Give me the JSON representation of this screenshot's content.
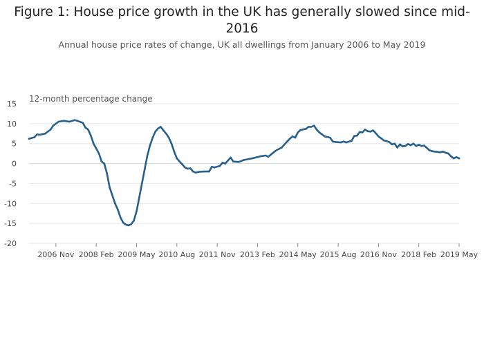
{
  "chart_data": {
    "type": "line",
    "title": "Figure 1: House price growth in the UK has generally slowed since mid-2016",
    "title_lines": [
      "Figure 1: House price growth in the UK has generally slowed since mid-",
      "2016"
    ],
    "subtitle": "Annual house price rates of change, UK all dwellings from January 2006 to May 2019",
    "ylabel": "12-month percentage change",
    "xlabel": "",
    "ylim": [
      -20,
      15
    ],
    "yticks": [
      15,
      10,
      5,
      0,
      -5,
      -10,
      -15,
      -20
    ],
    "xlim": [
      "2006-01",
      "2019-05"
    ],
    "xticks": [
      {
        "label": "2006 Nov",
        "date": "2006-11"
      },
      {
        "label": "2008 Feb",
        "date": "2008-02"
      },
      {
        "label": "2009 May",
        "date": "2009-05"
      },
      {
        "label": "2010 Aug",
        "date": "2010-08"
      },
      {
        "label": "2011 Nov",
        "date": "2011-11"
      },
      {
        "label": "2013 Feb",
        "date": "2013-02"
      },
      {
        "label": "2014 May",
        "date": "2014-05"
      },
      {
        "label": "2015 Aug",
        "date": "2015-08"
      },
      {
        "label": "2016 Nov",
        "date": "2016-11"
      },
      {
        "label": "2018 Feb",
        "date": "2018-02"
      },
      {
        "label": "2019 May",
        "date": "2019-05"
      }
    ],
    "grid": true,
    "line_color": "#27608f",
    "series": [
      {
        "points": [
          [
            "2006-01",
            6.2
          ],
          [
            "2006-03",
            6.6
          ],
          [
            "2006-04",
            7.3
          ],
          [
            "2006-05",
            7.2
          ],
          [
            "2006-07",
            7.5
          ],
          [
            "2006-09",
            8.5
          ],
          [
            "2006-10",
            9.5
          ],
          [
            "2006-12",
            10.5
          ],
          [
            "2007-02",
            10.7
          ],
          [
            "2007-04",
            10.5
          ],
          [
            "2007-06",
            10.9
          ],
          [
            "2007-07",
            10.7
          ],
          [
            "2007-09",
            10.2
          ],
          [
            "2007-10",
            9.0
          ],
          [
            "2007-11",
            8.5
          ],
          [
            "2007-12",
            7.0
          ],
          [
            "2008-01",
            5.0
          ],
          [
            "2008-03",
            2.5
          ],
          [
            "2008-04",
            0.5
          ],
          [
            "2008-05",
            0.0
          ],
          [
            "2008-06",
            -2.5
          ],
          [
            "2008-07",
            -6.0
          ],
          [
            "2008-09",
            -10.0
          ],
          [
            "2008-10",
            -11.5
          ],
          [
            "2008-11",
            -13.5
          ],
          [
            "2008-12",
            -14.8
          ],
          [
            "2009-01",
            -15.3
          ],
          [
            "2009-02",
            -15.5
          ],
          [
            "2009-03",
            -15.2
          ],
          [
            "2009-04",
            -14.3
          ],
          [
            "2009-05",
            -12.0
          ],
          [
            "2009-06",
            -8.5
          ],
          [
            "2009-07",
            -5.0
          ],
          [
            "2009-08",
            -1.5
          ],
          [
            "2009-09",
            2.0
          ],
          [
            "2009-10",
            4.5
          ],
          [
            "2009-11",
            6.5
          ],
          [
            "2009-12",
            8.0
          ],
          [
            "2010-01",
            8.8
          ],
          [
            "2010-02",
            9.2
          ],
          [
            "2010-03",
            8.3
          ],
          [
            "2010-04",
            7.5
          ],
          [
            "2010-05",
            6.5
          ],
          [
            "2010-06",
            5.0
          ],
          [
            "2010-07",
            3.0
          ],
          [
            "2010-08",
            1.3
          ],
          [
            "2010-09",
            0.5
          ],
          [
            "2010-10",
            -0.2
          ],
          [
            "2010-11",
            -1.0
          ],
          [
            "2010-12",
            -1.3
          ],
          [
            "2011-01",
            -1.2
          ],
          [
            "2011-02",
            -2.0
          ],
          [
            "2011-03",
            -2.3
          ],
          [
            "2011-04",
            -2.1
          ],
          [
            "2011-06",
            -2.0
          ],
          [
            "2011-08",
            -2.0
          ],
          [
            "2011-09",
            -0.8
          ],
          [
            "2011-10",
            -1.0
          ],
          [
            "2011-12",
            -0.6
          ],
          [
            "2012-01",
            0.2
          ],
          [
            "2012-02",
            0.0
          ],
          [
            "2012-04",
            1.5
          ],
          [
            "2012-05",
            0.5
          ],
          [
            "2012-07",
            0.4
          ],
          [
            "2012-09",
            0.9
          ],
          [
            "2012-12",
            1.3
          ],
          [
            "2013-03",
            1.8
          ],
          [
            "2013-05",
            2.0
          ],
          [
            "2013-06",
            1.7
          ],
          [
            "2013-08",
            2.8
          ],
          [
            "2013-09",
            3.3
          ],
          [
            "2013-11",
            4.0
          ],
          [
            "2014-01",
            5.5
          ],
          [
            "2014-02",
            6.2
          ],
          [
            "2014-03",
            6.8
          ],
          [
            "2014-04",
            6.5
          ],
          [
            "2014-05",
            7.8
          ],
          [
            "2014-06",
            8.4
          ],
          [
            "2014-08",
            8.7
          ],
          [
            "2014-09",
            9.2
          ],
          [
            "2014-10",
            9.2
          ],
          [
            "2014-11",
            9.5
          ],
          [
            "2014-12",
            8.5
          ],
          [
            "2015-01",
            7.8
          ],
          [
            "2015-03",
            6.8
          ],
          [
            "2015-05",
            6.5
          ],
          [
            "2015-06",
            5.5
          ],
          [
            "2015-07",
            5.4
          ],
          [
            "2015-09",
            5.3
          ],
          [
            "2015-10",
            5.5
          ],
          [
            "2015-11",
            5.3
          ],
          [
            "2016-01",
            5.7
          ],
          [
            "2016-02",
            6.9
          ],
          [
            "2016-03",
            7.0
          ],
          [
            "2016-04",
            7.9
          ],
          [
            "2016-05",
            7.8
          ],
          [
            "2016-06",
            8.5
          ],
          [
            "2016-07",
            8.1
          ],
          [
            "2016-08",
            8.0
          ],
          [
            "2016-09",
            8.3
          ],
          [
            "2016-10",
            7.6
          ],
          [
            "2016-11",
            6.8
          ],
          [
            "2016-12",
            6.3
          ],
          [
            "2017-01",
            5.8
          ],
          [
            "2017-02",
            5.6
          ],
          [
            "2017-03",
            5.4
          ],
          [
            "2017-04",
            4.8
          ],
          [
            "2017-05",
            5.0
          ],
          [
            "2017-06",
            4.0
          ],
          [
            "2017-07",
            4.8
          ],
          [
            "2017-08",
            4.3
          ],
          [
            "2017-09",
            4.4
          ],
          [
            "2017-10",
            4.9
          ],
          [
            "2017-11",
            4.6
          ],
          [
            "2017-12",
            5.0
          ],
          [
            "2018-01",
            4.4
          ],
          [
            "2018-02",
            4.7
          ],
          [
            "2018-03",
            4.4
          ],
          [
            "2018-04",
            4.5
          ],
          [
            "2018-05",
            3.9
          ],
          [
            "2018-06",
            3.3
          ],
          [
            "2018-07",
            3.1
          ],
          [
            "2018-08",
            3.0
          ],
          [
            "2018-09",
            2.9
          ],
          [
            "2018-10",
            2.8
          ],
          [
            "2018-11",
            3.0
          ],
          [
            "2018-12",
            2.7
          ],
          [
            "2019-01",
            2.5
          ],
          [
            "2019-02",
            1.8
          ],
          [
            "2019-03",
            1.3
          ],
          [
            "2019-04",
            1.6
          ],
          [
            "2019-05",
            1.3
          ]
        ]
      }
    ]
  }
}
